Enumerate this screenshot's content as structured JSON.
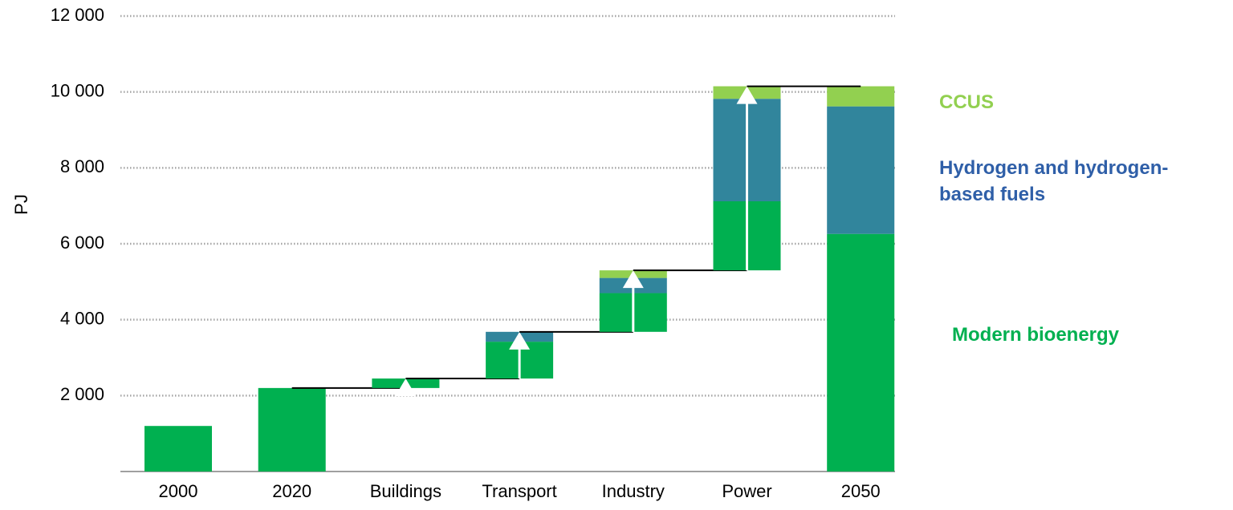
{
  "chart_data": {
    "type": "waterfall",
    "y_label": "PJ",
    "categories": [
      "2000",
      "2020",
      "Buildings",
      "Transport",
      "Industry",
      "Power",
      "2050"
    ],
    "is_total": [
      true,
      true,
      false,
      false,
      false,
      false,
      true
    ],
    "series": [
      {
        "name": "Modern bioenergy",
        "color": "#00b050",
        "values": [
          1200,
          2200,
          250,
          970,
          1020,
          1820,
          6260
        ]
      },
      {
        "name": "Hydrogen and hydrogen-based fuels",
        "color": "#31859c",
        "values": [
          null,
          null,
          null,
          260,
          400,
          2700,
          3360
        ]
      },
      {
        "name": "CCUS",
        "color": "#92d050",
        "values": [
          null,
          null,
          null,
          null,
          200,
          330,
          530
        ]
      }
    ],
    "ylim": [
      0,
      12000
    ],
    "yticks": [
      {
        "value": 2000,
        "label": "2 000"
      },
      {
        "value": 4000,
        "label": "4 000"
      },
      {
        "value": 6000,
        "label": "6 000"
      },
      {
        "value": 8000,
        "label": "8 000"
      },
      {
        "value": 10000,
        "label": "10 000"
      },
      {
        "value": 12000,
        "label": "12 000"
      }
    ],
    "grid": true
  }
}
